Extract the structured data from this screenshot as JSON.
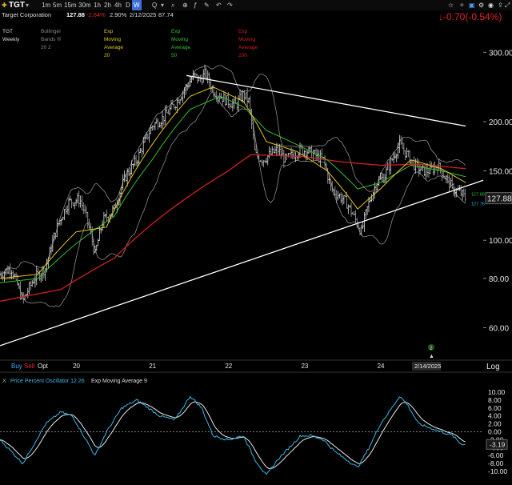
{
  "header": {
    "symbol": "TGT",
    "timeframes": [
      "1m",
      "5m",
      "15m",
      "30m",
      "1h",
      "2h",
      "4h",
      "D",
      "W",
      "Q"
    ],
    "active_timeframe": "W",
    "company": "Target Corporation",
    "price": "127.88",
    "change_pct": "-2.64%",
    "stat1": "2.90%",
    "date": "2/12/2025",
    "stat2": "87.74",
    "big_change": "↓-0.70(-0.54%)"
  },
  "legend": {
    "chart_name": "TGT Weekly",
    "bollinger": "Bollinger Bands ® 20 2",
    "ema20": "Exp Moving Average 20",
    "ema50": "Exp Moving Average 50",
    "ema200": "Exp Moving Average 200"
  },
  "bottom_bar": {
    "buy": "Buy",
    "sell": "Sell",
    "opt": "Opt",
    "log": "Log",
    "date_marker": "2/14/2025",
    "event_badge": "2"
  },
  "oscillator": {
    "title": "Price Percent Oscillator 12 26",
    "signal": "Exp Moving Average 9",
    "close_label": "X"
  },
  "price_labels": {
    "last": "127.88",
    "small_a": "127.88",
    "small_b": "127.76"
  },
  "colors": {
    "ema20": "#e6c619",
    "ema50": "#2fbf2f",
    "ema200": "#d11f1f",
    "bands": "#8a8a8a",
    "ppo": "#39b7e6",
    "signal": "#e8e8e8",
    "trend": "#ffffff",
    "down": "#e0252a"
  },
  "chart_data": {
    "type": "line",
    "title": "TGT Weekly",
    "y_scale": "log",
    "yticks": [
      60,
      80,
      100,
      150,
      200,
      300
    ],
    "ytick_labels": [
      "60.00",
      "80.00",
      "100.00",
      "150.00",
      "200.00",
      "300.00"
    ],
    "xticks": [
      {
        "x": 2020,
        "label": "20"
      },
      {
        "x": 2021,
        "label": "21"
      },
      {
        "x": 2022,
        "label": "22"
      },
      {
        "x": 2023,
        "label": "23"
      },
      {
        "x": 2024,
        "label": "24"
      }
    ],
    "xlim": [
      2019.0,
      2025.35
    ],
    "ylim": [
      52,
      330
    ],
    "price_anchors": [
      [
        2019.0,
        82
      ],
      [
        2019.15,
        85
      ],
      [
        2019.3,
        70
      ],
      [
        2019.45,
        80
      ],
      [
        2019.6,
        85
      ],
      [
        2019.75,
        108
      ],
      [
        2019.9,
        125
      ],
      [
        2020.05,
        127
      ],
      [
        2020.15,
        112
      ],
      [
        2020.25,
        92
      ],
      [
        2020.35,
        112
      ],
      [
        2020.5,
        120
      ],
      [
        2020.65,
        145
      ],
      [
        2020.8,
        160
      ],
      [
        2021.0,
        195
      ],
      [
        2021.15,
        205
      ],
      [
        2021.3,
        222
      ],
      [
        2021.45,
        245
      ],
      [
        2021.55,
        262
      ],
      [
        2021.62,
        255
      ],
      [
        2021.7,
        265
      ],
      [
        2021.8,
        240
      ],
      [
        2021.9,
        232
      ],
      [
        2022.0,
        225
      ],
      [
        2022.1,
        220
      ],
      [
        2022.2,
        235
      ],
      [
        2022.27,
        225
      ],
      [
        2022.35,
        165
      ],
      [
        2022.45,
        160
      ],
      [
        2022.55,
        165
      ],
      [
        2022.65,
        170
      ],
      [
        2022.75,
        160
      ],
      [
        2022.85,
        165
      ],
      [
        2022.95,
        170
      ],
      [
        2023.05,
        168
      ],
      [
        2023.15,
        164
      ],
      [
        2023.25,
        160
      ],
      [
        2023.35,
        135
      ],
      [
        2023.45,
        130
      ],
      [
        2023.55,
        125
      ],
      [
        2023.65,
        115
      ],
      [
        2023.75,
        105
      ],
      [
        2023.85,
        125
      ],
      [
        2023.95,
        140
      ],
      [
        2024.05,
        145
      ],
      [
        2024.15,
        160
      ],
      [
        2024.25,
        175
      ],
      [
        2024.35,
        165
      ],
      [
        2024.45,
        155
      ],
      [
        2024.55,
        150
      ],
      [
        2024.65,
        150
      ],
      [
        2024.75,
        155
      ],
      [
        2024.85,
        145
      ],
      [
        2024.95,
        135
      ],
      [
        2025.05,
        132
      ],
      [
        2025.12,
        127.88
      ]
    ],
    "ema200_anchors": [
      [
        2019.0,
        70
      ],
      [
        2019.8,
        75
      ],
      [
        2020.5,
        90
      ],
      [
        2021.0,
        110
      ],
      [
        2021.5,
        130
      ],
      [
        2022.0,
        150
      ],
      [
        2022.3,
        165
      ],
      [
        2023.0,
        163
      ],
      [
        2023.5,
        158
      ],
      [
        2024.0,
        155
      ],
      [
        2024.5,
        156
      ],
      [
        2025.12,
        152
      ]
    ],
    "ema50_anchors": [
      [
        2019.0,
        78
      ],
      [
        2019.5,
        80
      ],
      [
        2020.0,
        98
      ],
      [
        2020.5,
        115
      ],
      [
        2021.0,
        160
      ],
      [
        2021.5,
        215
      ],
      [
        2021.9,
        232
      ],
      [
        2022.2,
        218
      ],
      [
        2022.5,
        190
      ],
      [
        2022.9,
        175
      ],
      [
        2023.3,
        160
      ],
      [
        2023.7,
        135
      ],
      [
        2024.0,
        140
      ],
      [
        2024.4,
        155
      ],
      [
        2024.8,
        150
      ],
      [
        2025.12,
        145
      ]
    ],
    "ema20_anchors": [
      [
        2019.0,
        80
      ],
      [
        2019.5,
        82
      ],
      [
        2020.0,
        105
      ],
      [
        2020.4,
        108
      ],
      [
        2021.0,
        175
      ],
      [
        2021.5,
        232
      ],
      [
        2021.8,
        245
      ],
      [
        2022.2,
        225
      ],
      [
        2022.5,
        178
      ],
      [
        2022.9,
        168
      ],
      [
        2023.3,
        150
      ],
      [
        2023.7,
        120
      ],
      [
        2024.0,
        135
      ],
      [
        2024.4,
        160
      ],
      [
        2024.8,
        152
      ],
      [
        2025.12,
        140
      ]
    ],
    "trendline_top": [
      [
        2021.45,
        262
      ],
      [
        2025.12,
        195
      ]
    ],
    "trendline_bottom": [
      [
        2019.0,
        54
      ],
      [
        2025.35,
        142
      ]
    ],
    "ppo_yticks": [
      -10,
      -8,
      -6,
      -4,
      -2,
      0,
      2,
      4,
      6,
      8,
      10
    ],
    "ppo_ytick_labels": [
      "-10.00",
      "-8.00",
      "-6.00",
      "-4.00",
      "-2.00",
      "0.00",
      "2.00",
      "4.00",
      "6.00",
      "8.00",
      "10.00"
    ],
    "ppo_last": "-3.19",
    "ppo_ylim": [
      -11,
      11
    ],
    "ppo_anchors": [
      [
        2019.0,
        -2
      ],
      [
        2019.15,
        -5
      ],
      [
        2019.3,
        -8
      ],
      [
        2019.45,
        -3
      ],
      [
        2019.6,
        2
      ],
      [
        2019.8,
        5
      ],
      [
        2019.95,
        4
      ],
      [
        2020.1,
        -1
      ],
      [
        2020.25,
        -6
      ],
      [
        2020.4,
        0
      ],
      [
        2020.6,
        6
      ],
      [
        2020.8,
        8
      ],
      [
        2020.95,
        6
      ],
      [
        2021.1,
        4
      ],
      [
        2021.3,
        3
      ],
      [
        2021.5,
        9
      ],
      [
        2021.65,
        6
      ],
      [
        2021.8,
        -1
      ],
      [
        2022.0,
        -2
      ],
      [
        2022.2,
        -1
      ],
      [
        2022.35,
        -7
      ],
      [
        2022.5,
        -11
      ],
      [
        2022.65,
        -7
      ],
      [
        2022.8,
        -4
      ],
      [
        2022.95,
        -1
      ],
      [
        2023.1,
        -1
      ],
      [
        2023.25,
        -2
      ],
      [
        2023.4,
        -5
      ],
      [
        2023.55,
        -7
      ],
      [
        2023.7,
        -9
      ],
      [
        2023.85,
        -4
      ],
      [
        2024.0,
        2
      ],
      [
        2024.15,
        6
      ],
      [
        2024.25,
        9
      ],
      [
        2024.35,
        7
      ],
      [
        2024.5,
        2
      ],
      [
        2024.65,
        1
      ],
      [
        2024.8,
        0
      ],
      [
        2024.95,
        -1
      ],
      [
        2025.05,
        -3
      ],
      [
        2025.12,
        -3.19
      ]
    ]
  }
}
